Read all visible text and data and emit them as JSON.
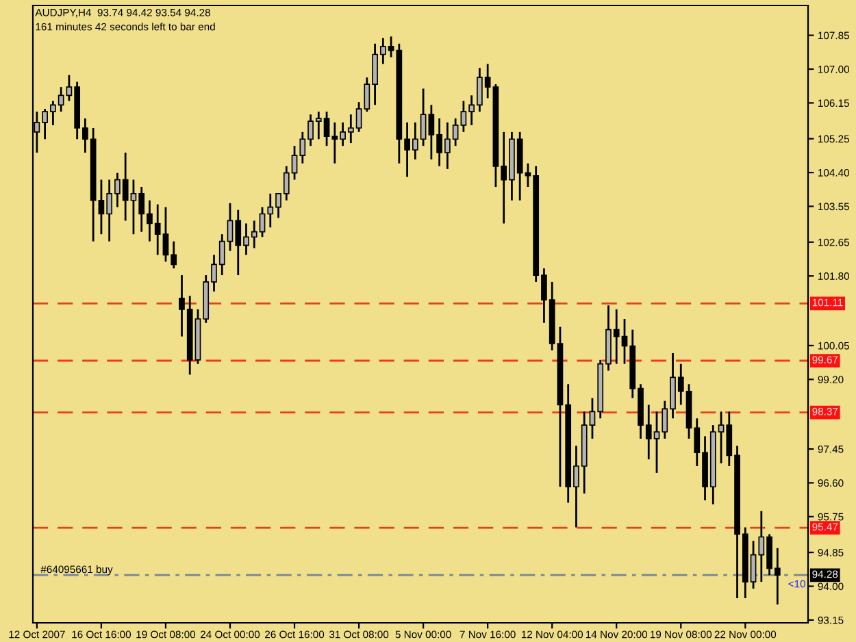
{
  "chart_data": {
    "type": "candlestick",
    "title": "AUDJPY,H4  93.74 94.42 93.54 94.28",
    "subtitle": "161 minutes 42 seconds left to bar end",
    "categories": [
      "12 Oct 2007",
      null,
      null,
      null,
      null,
      null,
      null,
      null,
      "16 Oct 16:00",
      null,
      null,
      null,
      null,
      null,
      null,
      null,
      "19 Oct 08:00",
      null,
      null,
      null,
      null,
      null,
      null,
      null,
      "24 Oct 00:00",
      null,
      null,
      null,
      null,
      null,
      null,
      null,
      "26 Oct 16:00",
      null,
      null,
      null,
      null,
      null,
      null,
      null,
      "31 Oct 08:00",
      null,
      null,
      null,
      null,
      null,
      null,
      null,
      "5 Nov 00:00",
      null,
      null,
      null,
      null,
      null,
      null,
      null,
      "7 Nov 16:00",
      null,
      null,
      null,
      null,
      null,
      null,
      null,
      "12 Nov 04:00",
      null,
      null,
      null,
      null,
      null,
      null,
      null,
      "14 Nov 20:00",
      null,
      null,
      null,
      null,
      null,
      null,
      null,
      "19 Nov 08:00",
      null,
      null,
      null,
      null,
      null,
      null,
      null,
      "22 Nov 00:00",
      null,
      null,
      null,
      null
    ],
    "ohlc": [
      [
        105.42,
        105.93,
        104.9,
        105.66
      ],
      [
        105.66,
        106.0,
        105.24,
        105.93
      ],
      [
        105.93,
        106.2,
        105.59,
        106.1
      ],
      [
        106.1,
        106.55,
        105.93,
        106.34
      ],
      [
        106.34,
        106.85,
        106.2,
        106.55
      ],
      [
        106.55,
        106.68,
        105.24,
        105.52
      ],
      [
        105.52,
        105.76,
        104.9,
        105.24
      ],
      [
        105.24,
        105.52,
        102.67,
        103.7
      ],
      [
        103.7,
        104.22,
        102.85,
        103.36
      ],
      [
        103.36,
        104.22,
        102.67,
        103.87
      ],
      [
        103.87,
        104.39,
        103.53,
        104.22
      ],
      [
        104.22,
        104.9,
        103.19,
        103.7
      ],
      [
        103.7,
        104.22,
        102.85,
        103.87
      ],
      [
        103.87,
        104.04,
        102.91,
        103.36
      ],
      [
        103.36,
        103.7,
        102.67,
        103.12
      ],
      [
        103.12,
        103.6,
        102.33,
        102.85
      ],
      [
        102.85,
        103.53,
        102.16,
        102.33
      ],
      [
        102.33,
        102.67,
        101.99,
        102.09
      ],
      [
        101.24,
        101.82,
        100.28,
        100.96
      ],
      [
        100.96,
        101.3,
        99.32,
        99.69
      ],
      [
        99.69,
        100.96,
        99.59,
        100.72
      ],
      [
        100.72,
        101.82,
        100.62,
        101.65
      ],
      [
        101.65,
        102.33,
        101.41,
        102.09
      ],
      [
        102.09,
        102.85,
        101.82,
        102.67
      ],
      [
        102.67,
        103.63,
        102.43,
        103.19
      ],
      [
        103.19,
        103.46,
        101.82,
        102.57
      ],
      [
        102.57,
        103.12,
        102.33,
        102.78
      ],
      [
        102.78,
        103.19,
        102.5,
        102.91
      ],
      [
        102.91,
        103.53,
        102.78,
        103.36
      ],
      [
        103.36,
        103.87,
        103.02,
        103.53
      ],
      [
        103.53,
        103.87,
        103.26,
        103.87
      ],
      [
        103.87,
        104.56,
        103.7,
        104.39
      ],
      [
        104.39,
        105.07,
        104.22,
        104.83
      ],
      [
        104.83,
        105.42,
        104.63,
        105.24
      ],
      [
        105.24,
        105.86,
        105.07,
        105.69
      ],
      [
        105.69,
        105.93,
        105.24,
        105.76
      ],
      [
        105.76,
        105.93,
        105.07,
        105.31
      ],
      [
        105.31,
        105.66,
        104.63,
        105.24
      ],
      [
        105.24,
        105.66,
        105.07,
        105.42
      ],
      [
        105.42,
        105.86,
        105.14,
        105.52
      ],
      [
        105.52,
        106.17,
        105.42,
        106.0
      ],
      [
        106.0,
        106.79,
        105.93,
        106.62
      ],
      [
        106.62,
        107.64,
        106.1,
        107.37
      ],
      [
        107.37,
        107.78,
        107.13,
        107.57
      ],
      [
        107.57,
        107.82,
        107.3,
        107.47
      ],
      [
        107.47,
        107.64,
        104.63,
        105.24
      ],
      [
        105.24,
        105.66,
        104.29,
        104.97
      ],
      [
        104.97,
        105.66,
        104.73,
        105.24
      ],
      [
        105.24,
        106.51,
        105.07,
        105.86
      ],
      [
        105.86,
        106.1,
        104.73,
        105.35
      ],
      [
        105.35,
        105.76,
        104.56,
        104.9
      ],
      [
        104.9,
        105.66,
        104.49,
        105.24
      ],
      [
        105.24,
        105.76,
        105.07,
        105.59
      ],
      [
        105.59,
        106.2,
        105.42,
        105.93
      ],
      [
        105.93,
        106.34,
        105.59,
        106.1
      ],
      [
        106.1,
        107.03,
        105.93,
        106.79
      ],
      [
        106.79,
        107.13,
        106.27,
        106.55
      ],
      [
        106.55,
        106.62,
        104.04,
        104.56
      ],
      [
        104.56,
        105.42,
        103.12,
        104.22
      ],
      [
        104.22,
        105.42,
        103.7,
        105.24
      ],
      [
        105.24,
        105.42,
        103.7,
        104.39
      ],
      [
        104.39,
        104.63,
        104.04,
        104.32
      ],
      [
        104.32,
        104.56,
        101.65,
        101.82
      ],
      [
        101.82,
        101.99,
        100.62,
        101.2
      ],
      [
        101.2,
        101.65,
        99.93,
        100.1
      ],
      [
        100.1,
        100.52,
        96.5,
        98.56
      ],
      [
        98.56,
        99.08,
        96.1,
        96.5
      ],
      [
        96.5,
        97.53,
        95.48,
        97.02
      ],
      [
        97.02,
        98.39,
        96.33,
        98.05
      ],
      [
        98.05,
        98.73,
        97.71,
        98.39
      ],
      [
        98.39,
        99.69,
        98.22,
        99.59
      ],
      [
        99.59,
        101.06,
        99.42,
        100.45
      ],
      [
        100.45,
        100.96,
        99.59,
        100.28
      ],
      [
        100.28,
        100.72,
        99.59,
        100.04
      ],
      [
        100.04,
        100.45,
        98.73,
        98.97
      ],
      [
        98.97,
        99.08,
        97.71,
        98.05
      ],
      [
        98.05,
        98.56,
        97.19,
        97.71
      ],
      [
        97.71,
        98.39,
        96.85,
        97.88
      ],
      [
        97.88,
        98.66,
        97.71,
        98.46
      ],
      [
        98.46,
        99.86,
        98.22,
        99.25
      ],
      [
        99.25,
        99.59,
        98.56,
        98.9
      ],
      [
        98.9,
        99.08,
        97.71,
        97.98
      ],
      [
        97.98,
        98.22,
        97.02,
        97.36
      ],
      [
        97.36,
        97.77,
        96.16,
        96.5
      ],
      [
        96.5,
        98.05,
        96.06,
        97.88
      ],
      [
        97.88,
        98.39,
        97.09,
        98.05
      ],
      [
        98.05,
        98.39,
        97.02,
        97.29
      ],
      [
        97.29,
        97.53,
        93.7,
        95.31
      ],
      [
        95.31,
        95.48,
        93.7,
        94.11
      ],
      [
        94.11,
        95.14,
        93.94,
        94.79
      ],
      [
        94.79,
        95.89,
        94.11,
        95.24
      ],
      [
        95.24,
        95.31,
        94.28,
        94.45
      ],
      [
        94.45,
        94.96,
        93.54,
        94.28
      ]
    ],
    "ylim": [
      93.08,
      108.6
    ],
    "yticks": [
      93.15,
      {
        "value": 94.0,
        "label": "94.00"
      },
      94.85,
      95.75,
      {
        "value": 96.6,
        "label": "96.60"
      },
      97.45,
      {
        "value": 99.2,
        "label": "99.20"
      },
      100.05,
      {
        "value": 101.8,
        "label": "101.80"
      },
      102.65,
      103.55,
      {
        "value": 104.4,
        "label": "104.40"
      },
      105.25,
      106.15,
      {
        "value": 107.0,
        "label": "107.00"
      },
      107.85
    ],
    "ref_lines": [
      {
        "axis": "y",
        "value": 101.11,
        "label": "101.11",
        "color": "#e8401c",
        "line_style": "dashed"
      },
      {
        "axis": "y",
        "value": 99.67,
        "label": "99.67",
        "color": "#e8401c",
        "line_style": "dashed"
      },
      {
        "axis": "y",
        "value": 98.37,
        "label": "98.37",
        "color": "#e8401c",
        "line_style": "dashed"
      },
      {
        "axis": "y",
        "value": 95.47,
        "label": "95.47",
        "color": "#e8401c",
        "line_style": "dashed"
      },
      {
        "axis": "y",
        "value": 94.28,
        "label": "#64095661 buy",
        "color": "#7a8aa0",
        "line_style": "dashdot"
      }
    ],
    "annotations": [
      "94.28",
      "<10"
    ],
    "grid": false
  }
}
